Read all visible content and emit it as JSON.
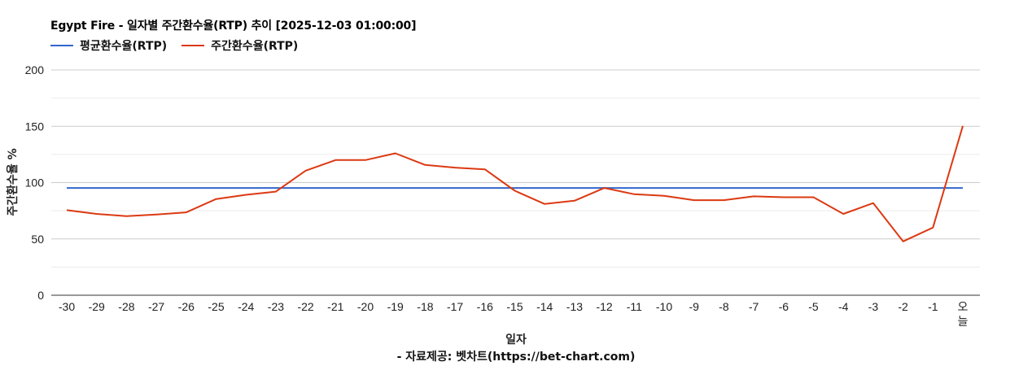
{
  "chart_data": {
    "type": "line",
    "title": "Egypt Fire - 일자별 주간환수율(RTP) 추이 [2025-12-03 01:00:00]",
    "xlabel": "일자",
    "ylabel": "주간환수율 %",
    "source": "- 자료제공: 벳차트(https://bet-chart.com)",
    "ylim": [
      0,
      200
    ],
    "yticks": [
      0,
      50,
      100,
      150,
      200
    ],
    "grid": true,
    "legend_position": "top-left",
    "categories": [
      "-30",
      "-29",
      "-28",
      "-27",
      "-26",
      "-25",
      "-24",
      "-23",
      "-22",
      "-21",
      "-20",
      "-19",
      "-18",
      "-17",
      "-16",
      "-15",
      "-14",
      "-13",
      "-12",
      "-11",
      "-10",
      "-9",
      "-8",
      "-7",
      "-6",
      "-5",
      "-4",
      "-3",
      "-2",
      "-1",
      "오늘"
    ],
    "series": [
      {
        "name": "평균환수율(RTP)",
        "color": "#3366cc",
        "values": [
          95.2,
          95.2,
          95.2,
          95.2,
          95.2,
          95.2,
          95.2,
          95.2,
          95.2,
          95.2,
          95.2,
          95.2,
          95.2,
          95.2,
          95.2,
          95.2,
          95.2,
          95.2,
          95.2,
          95.2,
          95.2,
          95.2,
          95.2,
          95.2,
          95.2,
          95.2,
          95.2,
          95.2,
          95.2,
          95.2,
          95.2
        ]
      },
      {
        "name": "주간환수율(RTP)",
        "color": "#dc3912",
        "values": [
          75.5,
          72.2,
          70.2,
          71.7,
          73.6,
          85.4,
          89.2,
          92.0,
          110.6,
          120.0,
          120.0,
          126.0,
          115.7,
          113.3,
          111.8,
          92.8,
          81.0,
          83.9,
          95.2,
          89.7,
          88.2,
          84.4,
          84.4,
          87.8,
          87.0,
          87.0,
          72.2,
          81.8,
          47.8,
          60.1,
          150.3
        ]
      }
    ]
  }
}
